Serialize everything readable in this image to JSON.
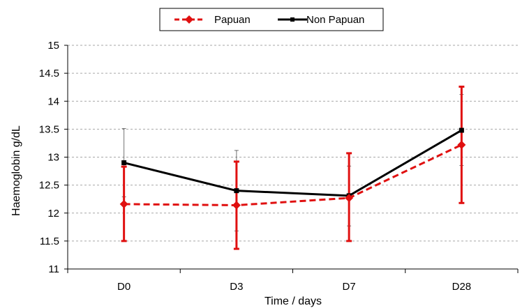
{
  "chart_data": {
    "type": "line",
    "categories": [
      "D0",
      "D3",
      "D7",
      "D28"
    ],
    "xlabel": "Time / days",
    "ylabel": "Haemoglobin  g/dL",
    "ylim": [
      11,
      15
    ],
    "yticks": [
      "11",
      "11.5",
      "12",
      "12.5",
      "13",
      "13.5",
      "14",
      "14.5",
      "15"
    ],
    "grid": "horizontal dashed",
    "legend_position": "top-center",
    "series": [
      {
        "name": "Papuan",
        "color": "#e01010",
        "line_style": "dashed",
        "marker": "diamond",
        "values": [
          12.16,
          12.14,
          12.27,
          13.22
        ],
        "error_low": [
          11.5,
          11.36,
          11.5,
          12.18
        ],
        "error_high": [
          12.83,
          12.92,
          13.07,
          14.26
        ]
      },
      {
        "name": "Non Papuan",
        "color": "#000000",
        "line_style": "solid",
        "marker": "square",
        "values": [
          12.9,
          12.4,
          12.31,
          13.48
        ],
        "error_low": [
          12.29,
          11.68,
          11.77,
          12.85
        ],
        "error_high": [
          13.51,
          13.12,
          12.84,
          14.12
        ]
      }
    ]
  }
}
